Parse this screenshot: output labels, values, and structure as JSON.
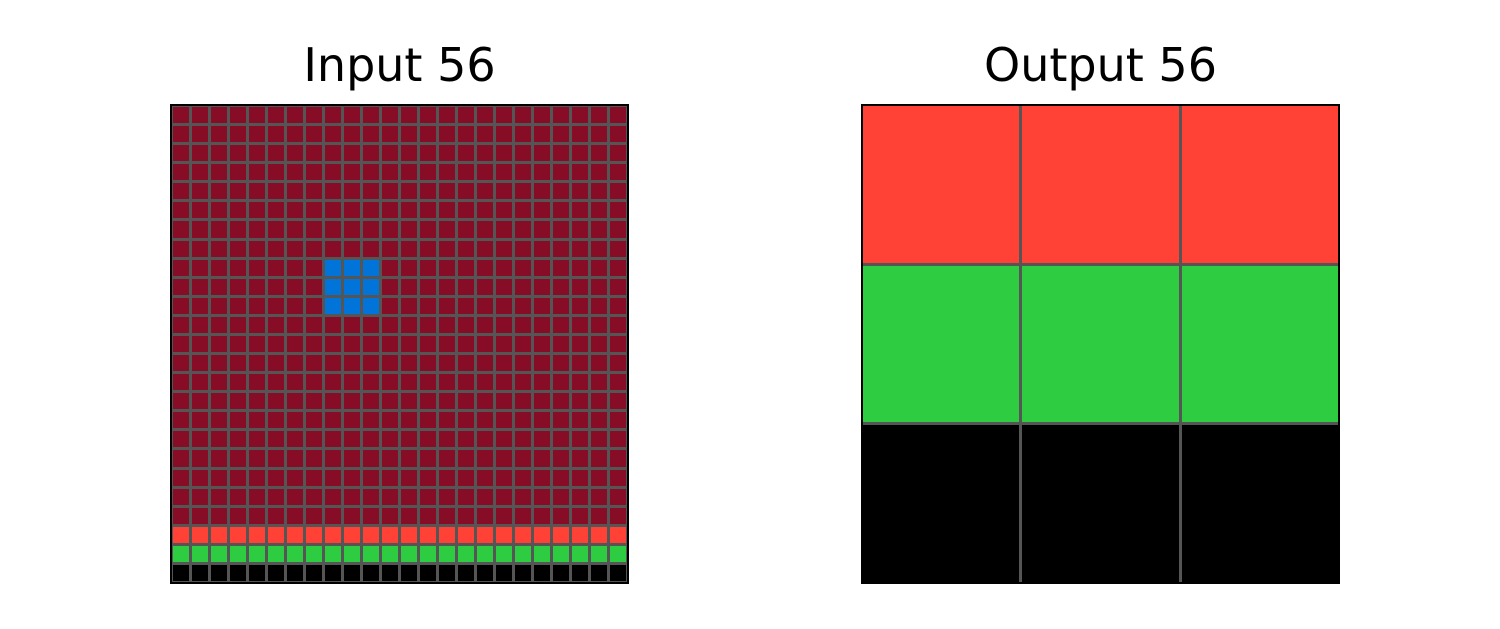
{
  "input_panel": {
    "title": "Input 56",
    "rows": 25,
    "cols": 24
  },
  "output_panel": {
    "title": "Output 56",
    "rows": 3,
    "cols": 3
  },
  "colors": {
    "background_fill": "#870c25",
    "block": "#0074d9",
    "red": "#ff4136",
    "green": "#2ecc40",
    "black": "#000000",
    "grid_line": "#555555"
  },
  "input_grid": {
    "background": "background_fill",
    "block": {
      "color": "block",
      "rows": [
        8,
        9,
        10
      ],
      "cols": [
        8,
        9,
        10
      ]
    },
    "bottom_rows": [
      "red",
      "green",
      "black"
    ]
  },
  "output_grid": [
    [
      "red",
      "red",
      "red"
    ],
    [
      "green",
      "green",
      "green"
    ],
    [
      "black",
      "black",
      "black"
    ]
  ]
}
